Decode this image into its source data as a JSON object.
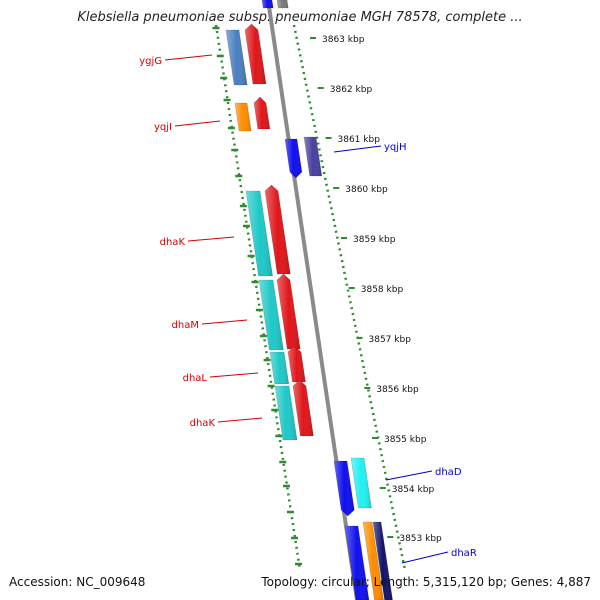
{
  "title": "Klebsiella pneumoniae subsp. pneumoniae MGH 78578, complete ...",
  "accession": "Accession: NC_009648",
  "stats": "Topology: circular; Length: 5,315,120 bp; Genes: 4,887",
  "colors": {
    "background": "#ffffff",
    "track_dots": "#2e8b2e",
    "backbone": "#8a8a8a",
    "left_label": "#d40000",
    "right_label": "#0000cc",
    "tick_label": "#111111"
  },
  "scale_ticks": [
    {
      "label": "3863 kbp",
      "kbp": 3863
    },
    {
      "label": "3862 kbp",
      "kbp": 3862
    },
    {
      "label": "3861 kbp",
      "kbp": 3861
    },
    {
      "label": "3860 kbp",
      "kbp": 3860
    },
    {
      "label": "3859 kbp",
      "kbp": 3859
    },
    {
      "label": "3858 kbp",
      "kbp": 3858
    },
    {
      "label": "3857 kbp",
      "kbp": 3857
    },
    {
      "label": "3856 kbp",
      "kbp": 3856
    },
    {
      "label": "3855 kbp",
      "kbp": 3855
    },
    {
      "label": "3854 kbp",
      "kbp": 3854
    },
    {
      "label": "3853 kbp",
      "kbp": 3853
    }
  ],
  "genes_left": [
    {
      "name": "ygjG",
      "color": "#4a7fbf",
      "shade": "#e0161a"
    },
    {
      "name": "yqjI",
      "color": "#ff8c00",
      "shade": "#e0161a"
    },
    {
      "name": "dhaK",
      "color": "#1fc8c8",
      "shade": "#e0161a"
    },
    {
      "name": "dhaM",
      "color": "#1fc8c8",
      "shade": "#e0161a"
    },
    {
      "name": "dhaL",
      "color": "#1fc8c8",
      "shade": "#e0161a"
    },
    {
      "name": "dhaK",
      "color": "#1fc8c8",
      "shade": "#e0161a"
    }
  ],
  "genes_right": [
    {
      "name": "yqjH",
      "color": "#1010ee",
      "shade": "#4a3fa0"
    },
    {
      "name": "dhaD",
      "color": "#1010ee",
      "shade": "#20f0f0"
    },
    {
      "name": "dhaR",
      "color": "#1010ee",
      "shade": "#ff8c00"
    }
  ]
}
